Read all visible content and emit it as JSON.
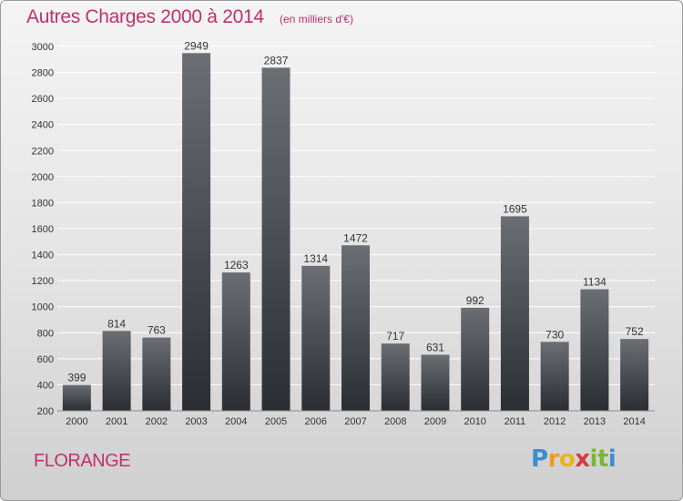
{
  "title": "Autres Charges 2000 à 2014",
  "unit_note": "(en milliers d'€)",
  "city": "FLORANGE",
  "logo": {
    "letters": [
      "P",
      "r",
      "o",
      "x",
      "i",
      "t",
      "i"
    ],
    "colors": [
      "#3a8fd0",
      "#f29a1f",
      "#e8b51a",
      "#d63a3a",
      "#79b634",
      "#79b634",
      "#3a8fd0"
    ]
  },
  "colors": {
    "bar_top": "#6b6f74",
    "bar_bottom": "#2a2e33",
    "grid": "#ffffff",
    "title": "#c0306a"
  },
  "chart_data": {
    "type": "bar",
    "categories": [
      "2000",
      "2001",
      "2002",
      "2003",
      "2004",
      "2005",
      "2006",
      "2007",
      "2008",
      "2009",
      "2010",
      "2011",
      "2012",
      "2013",
      "2014"
    ],
    "values": [
      399,
      814,
      763,
      2949,
      1263,
      2837,
      1314,
      1472,
      717,
      631,
      992,
      1695,
      730,
      1134,
      752
    ],
    "ylim": [
      200,
      3000
    ],
    "yticks": [
      200,
      400,
      600,
      800,
      1000,
      1200,
      1400,
      1600,
      1800,
      2000,
      2200,
      2400,
      2600,
      2800,
      3000
    ],
    "grid": true,
    "data_labels": true
  }
}
